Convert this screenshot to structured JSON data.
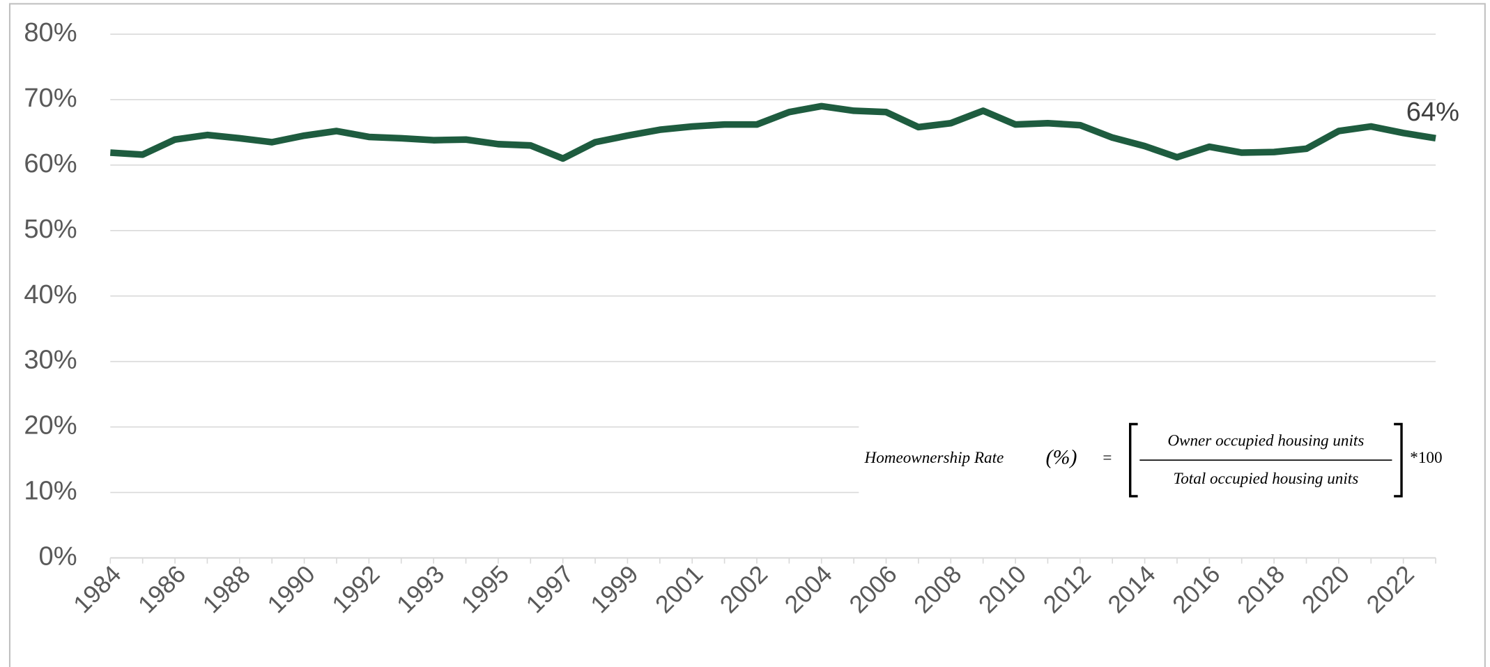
{
  "chart_data": {
    "type": "line",
    "categories": [
      "1984",
      null,
      "1986",
      null,
      "1988",
      null,
      "1990",
      null,
      "1992",
      null,
      "1993",
      null,
      "1995",
      null,
      "1997",
      null,
      "1999",
      null,
      "2001",
      null,
      "2002",
      null,
      "2004",
      null,
      "2006",
      null,
      "2008",
      null,
      "2010",
      null,
      "2012",
      null,
      "2014",
      null,
      "2016",
      null,
      "2018",
      null,
      "2020",
      null,
      "2022",
      null
    ],
    "series": [
      {
        "color": "#1e5c3f",
        "values": [
          61.9,
          61.6,
          63.9,
          64.6,
          64.1,
          63.5,
          64.5,
          65.2,
          64.3,
          64.1,
          63.8,
          63.9,
          63.2,
          63.0,
          61.0,
          63.5,
          64.5,
          65.4,
          65.9,
          66.2,
          66.2,
          68.1,
          69.0,
          68.3,
          68.1,
          65.8,
          66.4,
          68.3,
          66.2,
          66.4,
          66.1,
          64.2,
          62.9,
          61.2,
          62.8,
          61.9,
          62.0,
          62.5,
          65.2,
          65.9,
          64.9,
          64.1
        ],
        "value_labels": [
          null,
          null,
          null,
          null,
          null,
          null,
          null,
          null,
          null,
          null,
          null,
          null,
          null,
          null,
          null,
          null,
          null,
          null,
          null,
          null,
          null,
          null,
          null,
          null,
          null,
          null,
          null,
          null,
          null,
          null,
          null,
          null,
          null,
          null,
          null,
          null,
          null,
          null,
          null,
          null,
          null,
          "64%"
        ]
      }
    ],
    "ylim": [
      0,
      80
    ],
    "yticks": [
      {
        "value": 0,
        "label": "0%"
      },
      {
        "value": 10,
        "label": "10%"
      },
      {
        "value": 20,
        "label": "20%"
      },
      {
        "value": 30,
        "label": "30%"
      },
      {
        "value": 40,
        "label": "40%"
      },
      {
        "value": 50,
        "label": "50%"
      },
      {
        "value": 60,
        "label": "60%"
      },
      {
        "value": 70,
        "label": "70%"
      },
      {
        "value": 80,
        "label": "80%"
      }
    ],
    "grid": true,
    "formula": {
      "lhs": "Homeownership Rate",
      "unit": "(%)",
      "equals": "=",
      "numerator": "Owner occupied housing units",
      "denominator": "Total occupied housing units",
      "multiplier": "*100"
    }
  }
}
